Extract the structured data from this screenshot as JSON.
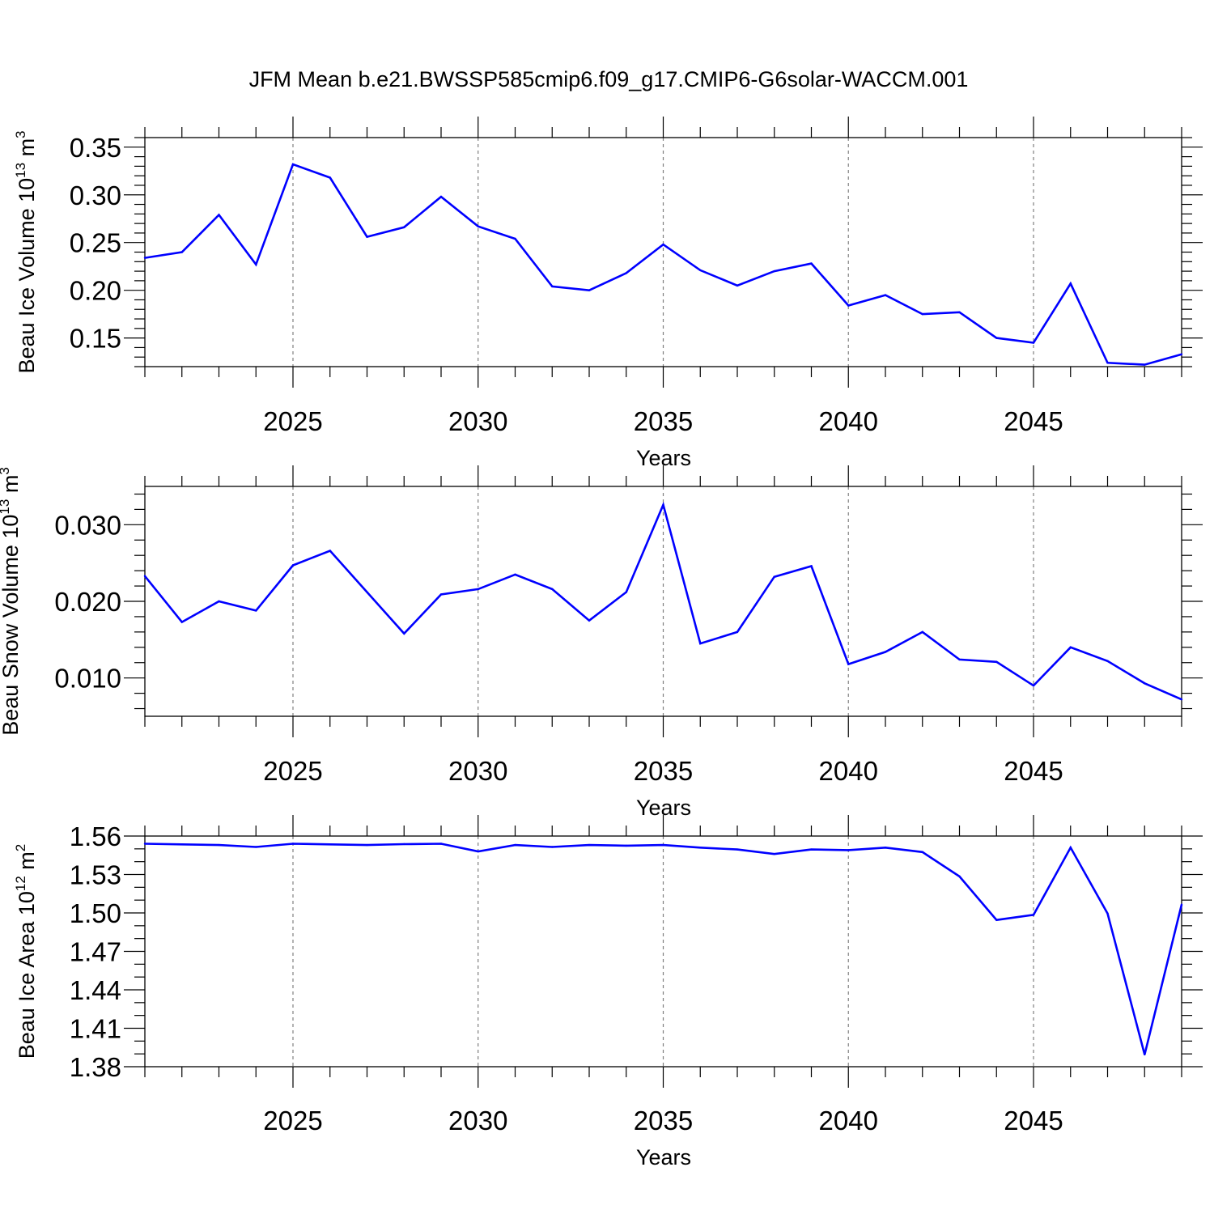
{
  "figure_title": "JFM Mean b.e21.BWSSP585cmip6.f09_g17.CMIP6-G6solar-WACCM.001",
  "colors": {
    "line": "#0000ff",
    "axis": "#000000",
    "grid": "#808080"
  },
  "chart_data": [
    {
      "type": "line",
      "title": "JFM Mean b.e21.BWSSP585cmip6.f09_g17.CMIP6-G6solar-WACCM.001",
      "xlabel": "Years",
      "ylabel": {
        "text": "Beau Ice Volume 10",
        "sup1": "13",
        "text2": " m",
        "sup2": "3"
      },
      "xlim": [
        2021,
        2049
      ],
      "ylim": [
        0.12,
        0.36
      ],
      "xticks": [
        2025,
        2030,
        2035,
        2040,
        2045
      ],
      "xtick_labels": [
        "2025",
        "2030",
        "2035",
        "2040",
        "2045"
      ],
      "yticks": [
        0.15,
        0.2,
        0.25,
        0.3,
        0.35
      ],
      "ytick_labels": [
        "0.15",
        "0.20",
        "0.25",
        "0.30",
        "0.35"
      ],
      "ymin_minor": 0.01,
      "x": [
        2021,
        2022,
        2023,
        2024,
        2025,
        2026,
        2027,
        2028,
        2029,
        2030,
        2031,
        2032,
        2033,
        2034,
        2035,
        2036,
        2037,
        2038,
        2039,
        2040,
        2041,
        2042,
        2043,
        2044,
        2045,
        2046,
        2047,
        2048,
        2049
      ],
      "series": [
        {
          "name": "Beau Ice Volume",
          "values": [
            0.234,
            0.24,
            0.279,
            0.227,
            0.332,
            0.318,
            0.256,
            0.266,
            0.298,
            0.267,
            0.254,
            0.204,
            0.2,
            0.218,
            0.248,
            0.221,
            0.205,
            0.22,
            0.228,
            0.184,
            0.195,
            0.175,
            0.177,
            0.15,
            0.145,
            0.207,
            0.124,
            0.122,
            0.133
          ]
        }
      ]
    },
    {
      "type": "line",
      "xlabel": "Years",
      "ylabel": {
        "text": "Beau Snow Volume 10",
        "sup1": "13",
        "text2": " m",
        "sup2": "3"
      },
      "xlim": [
        2021,
        2049
      ],
      "ylim": [
        0.005,
        0.035
      ],
      "xticks": [
        2025,
        2030,
        2035,
        2040,
        2045
      ],
      "xtick_labels": [
        "2025",
        "2030",
        "2035",
        "2040",
        "2045"
      ],
      "yticks": [
        0.01,
        0.02,
        0.03
      ],
      "ytick_labels": [
        "0.010",
        "0.020",
        "0.030"
      ],
      "ymin_minor": 0.002,
      "x": [
        2021,
        2022,
        2023,
        2024,
        2025,
        2026,
        2027,
        2028,
        2029,
        2030,
        2031,
        2032,
        2033,
        2034,
        2035,
        2036,
        2037,
        2038,
        2039,
        2040,
        2041,
        2042,
        2043,
        2044,
        2045,
        2046,
        2047,
        2048,
        2049
      ],
      "series": [
        {
          "name": "Beau Snow Volume",
          "values": [
            0.0233,
            0.0173,
            0.02,
            0.0188,
            0.0247,
            0.0266,
            0.0212,
            0.0158,
            0.0209,
            0.0216,
            0.0235,
            0.0216,
            0.0175,
            0.0212,
            0.0326,
            0.0145,
            0.016,
            0.0232,
            0.0246,
            0.0118,
            0.0134,
            0.016,
            0.0124,
            0.0121,
            0.009,
            0.014,
            0.0122,
            0.0093,
            0.0072
          ]
        }
      ]
    },
    {
      "type": "line",
      "xlabel": "Years",
      "ylabel": {
        "text": "Beau Ice Area 10",
        "sup1": "12",
        "text2": " m",
        "sup2": "2"
      },
      "xlim": [
        2021,
        2049
      ],
      "ylim": [
        1.38,
        1.56
      ],
      "xticks": [
        2025,
        2030,
        2035,
        2040,
        2045
      ],
      "xtick_labels": [
        "2025",
        "2030",
        "2035",
        "2040",
        "2045"
      ],
      "yticks": [
        1.38,
        1.41,
        1.44,
        1.47,
        1.5,
        1.53,
        1.56
      ],
      "ytick_labels": [
        "1.38",
        "1.41",
        "1.44",
        "1.47",
        "1.50",
        "1.53",
        "1.56"
      ],
      "ymin_minor": 0.01,
      "x": [
        2021,
        2022,
        2023,
        2024,
        2025,
        2026,
        2027,
        2028,
        2029,
        2030,
        2031,
        2032,
        2033,
        2034,
        2035,
        2036,
        2037,
        2038,
        2039,
        2040,
        2041,
        2042,
        2043,
        2044,
        2045,
        2046,
        2047,
        2048,
        2049
      ],
      "series": [
        {
          "name": "Beau Ice Area",
          "values": [
            1.554,
            1.5535,
            1.553,
            1.5515,
            1.554,
            1.5535,
            1.553,
            1.5537,
            1.554,
            1.548,
            1.553,
            1.5515,
            1.553,
            1.5525,
            1.553,
            1.551,
            1.5495,
            1.546,
            1.5495,
            1.549,
            1.551,
            1.5475,
            1.5285,
            1.4945,
            1.4985,
            1.551,
            1.4995,
            1.3895,
            1.5065
          ]
        }
      ]
    }
  ]
}
